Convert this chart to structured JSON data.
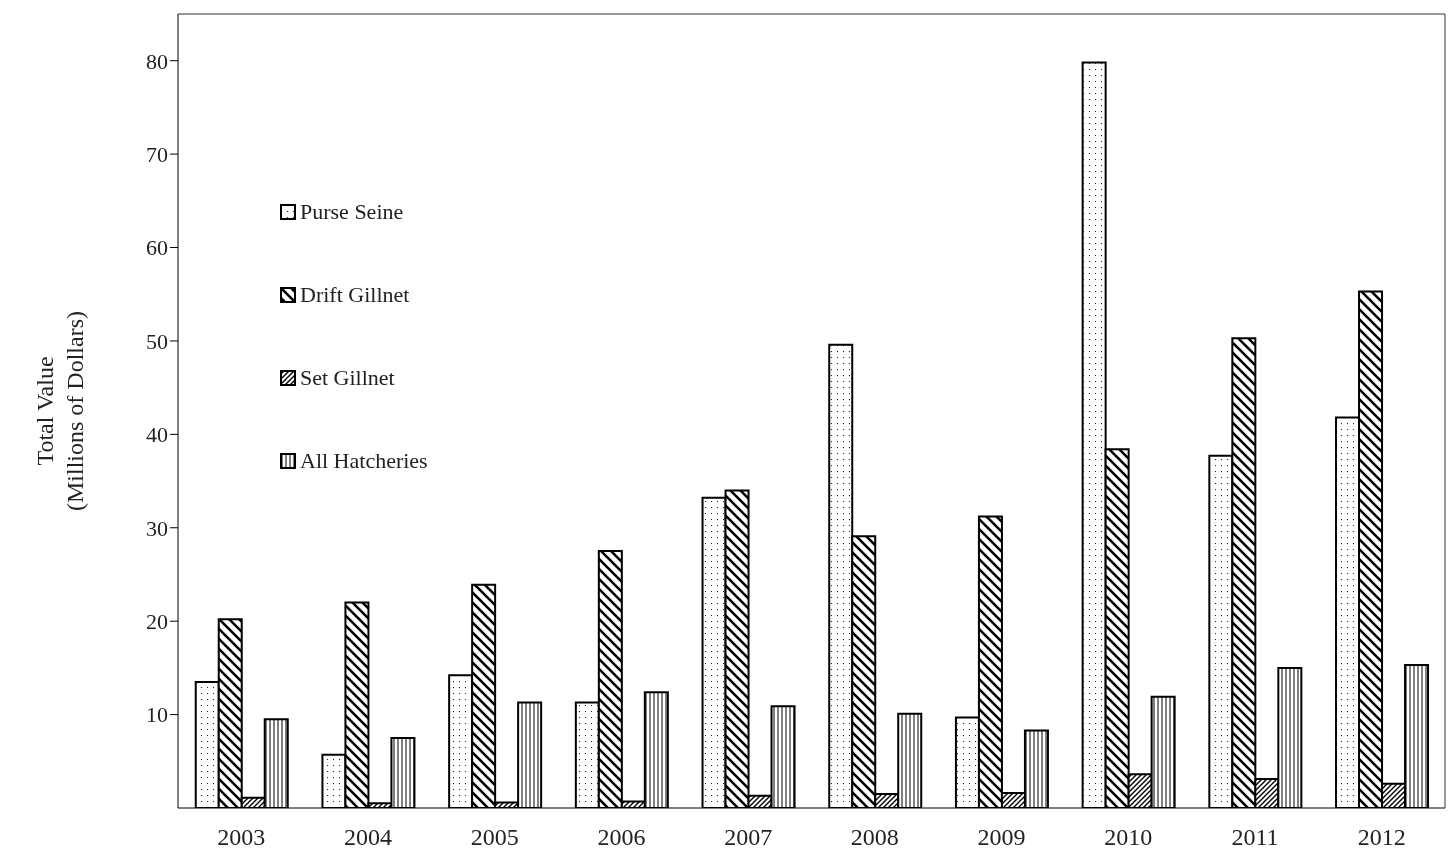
{
  "chart_data": {
    "type": "bar",
    "ylabel": "Total Value\n(Millions of Dollars)",
    "categories": [
      "2003",
      "2004",
      "2005",
      "2006",
      "2007",
      "2008",
      "2009",
      "2010",
      "2011",
      "2012"
    ],
    "series": [
      {
        "name": "Purse Seine",
        "color": "#000000",
        "values": [
          13.5,
          5.7,
          14.2,
          11.3,
          33.2,
          49.6,
          9.7,
          79.8,
          37.7,
          41.8
        ]
      },
      {
        "name": "Drift Gillnet",
        "color": "#000000",
        "values": [
          20.2,
          22.0,
          23.9,
          27.5,
          34.0,
          29.1,
          31.2,
          38.4,
          50.3,
          55.3
        ]
      },
      {
        "name": "Set Gillnet",
        "color": "#000000",
        "values": [
          1.1,
          0.5,
          0.6,
          0.7,
          1.3,
          1.5,
          1.6,
          3.6,
          3.1,
          2.6
        ]
      },
      {
        "name": "All Hatcheries",
        "color": "#000000",
        "values": [
          9.5,
          7.5,
          11.3,
          12.4,
          10.9,
          10.1,
          8.3,
          11.9,
          15.0,
          15.3
        ]
      }
    ],
    "ylim": [
      0,
      85
    ],
    "yticks": [
      10,
      20,
      30,
      40,
      50,
      60,
      70,
      80
    ],
    "grid": false,
    "legend": "top left"
  }
}
